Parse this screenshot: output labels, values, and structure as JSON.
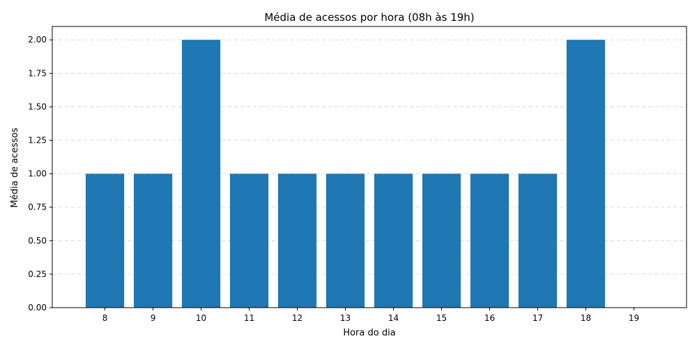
{
  "chart_data": {
    "type": "bar",
    "title": "Média de acessos por hora (08h às 19h)",
    "xlabel": "Hora do dia",
    "ylabel": "Média de acessos",
    "categories": [
      "8",
      "9",
      "10",
      "11",
      "12",
      "13",
      "14",
      "15",
      "16",
      "17",
      "18",
      "19"
    ],
    "values": [
      1,
      1,
      2,
      1,
      1,
      1,
      1,
      1,
      1,
      1,
      2,
      0
    ],
    "ylim": [
      0,
      2.1
    ],
    "yticks": [
      "0.00",
      "0.25",
      "0.50",
      "0.75",
      "1.00",
      "1.25",
      "1.50",
      "1.75",
      "2.00"
    ],
    "grid": "horizontal-dashed",
    "bar_color": "#1f77b4"
  }
}
